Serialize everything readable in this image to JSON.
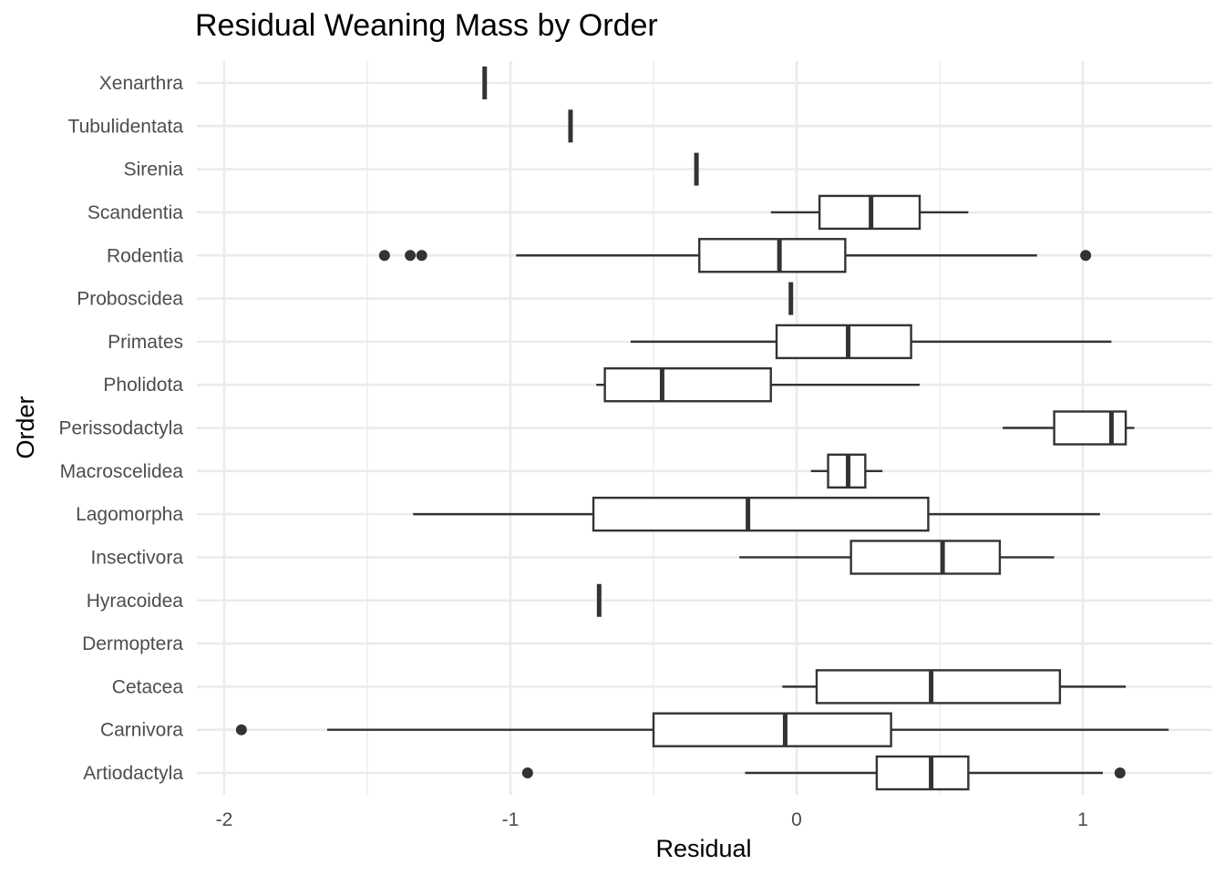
{
  "chart_data": {
    "type": "boxplot",
    "orientation": "horizontal",
    "title": "Residual Weaning Mass by Order",
    "xlabel": "Residual",
    "ylabel": "Order",
    "xlim": [
      -2.1,
      1.45
    ],
    "x_ticks": [
      -2,
      -1,
      0,
      1
    ],
    "x_tick_labels": [
      "-2",
      "-1",
      "0",
      "1"
    ],
    "grid": true,
    "categories": [
      "Artiodactyla",
      "Carnivora",
      "Cetacea",
      "Dermoptera",
      "Hyracoidea",
      "Insectivora",
      "Lagomorpha",
      "Macroscelidea",
      "Perissodactyla",
      "Pholidota",
      "Primates",
      "Proboscidea",
      "Rodentia",
      "Scandentia",
      "Sirenia",
      "Tubulidentata",
      "Xenarthra"
    ],
    "boxes": [
      {
        "category": "Artiodactyla",
        "min": -0.18,
        "q1": 0.28,
        "median": 0.47,
        "q3": 0.6,
        "max": 1.07,
        "outliers": [
          -0.94,
          1.13
        ]
      },
      {
        "category": "Carnivora",
        "min": -1.64,
        "q1": -0.5,
        "median": -0.04,
        "q3": 0.33,
        "max": 1.3,
        "outliers": [
          -1.94
        ]
      },
      {
        "category": "Cetacea",
        "min": -0.05,
        "q1": 0.07,
        "median": 0.47,
        "q3": 0.92,
        "max": 1.15,
        "outliers": []
      },
      {
        "category": "Dermoptera",
        "min": null,
        "q1": null,
        "median": null,
        "q3": null,
        "max": null,
        "outliers": []
      },
      {
        "category": "Hyracoidea",
        "min": -0.69,
        "q1": -0.69,
        "median": -0.69,
        "q3": -0.69,
        "max": -0.69,
        "outliers": []
      },
      {
        "category": "Insectivora",
        "min": -0.2,
        "q1": 0.19,
        "median": 0.51,
        "q3": 0.71,
        "max": 0.9,
        "outliers": []
      },
      {
        "category": "Lagomorpha",
        "min": -1.34,
        "q1": -0.71,
        "median": -0.17,
        "q3": 0.46,
        "max": 1.06,
        "outliers": []
      },
      {
        "category": "Macroscelidea",
        "min": 0.05,
        "q1": 0.11,
        "median": 0.18,
        "q3": 0.24,
        "max": 0.3,
        "outliers": []
      },
      {
        "category": "Perissodactyla",
        "min": 0.72,
        "q1": 0.9,
        "median": 1.1,
        "q3": 1.15,
        "max": 1.18,
        "outliers": []
      },
      {
        "category": "Pholidota",
        "min": -0.7,
        "q1": -0.67,
        "median": -0.47,
        "q3": -0.09,
        "max": 0.43,
        "outliers": []
      },
      {
        "category": "Primates",
        "min": -0.58,
        "q1": -0.07,
        "median": 0.18,
        "q3": 0.4,
        "max": 1.1,
        "outliers": []
      },
      {
        "category": "Proboscidea",
        "min": -0.02,
        "q1": -0.02,
        "median": -0.02,
        "q3": -0.02,
        "max": -0.02,
        "outliers": []
      },
      {
        "category": "Rodentia",
        "min": -0.98,
        "q1": -0.34,
        "median": -0.06,
        "q3": 0.17,
        "max": 0.84,
        "outliers": [
          -1.44,
          -1.35,
          -1.31,
          1.01
        ]
      },
      {
        "category": "Scandentia",
        "min": -0.09,
        "q1": 0.08,
        "median": 0.26,
        "q3": 0.43,
        "max": 0.6,
        "outliers": []
      },
      {
        "category": "Sirenia",
        "min": -0.35,
        "q1": -0.35,
        "median": -0.35,
        "q3": -0.35,
        "max": -0.35,
        "outliers": []
      },
      {
        "category": "Tubulidentata",
        "min": -0.79,
        "q1": -0.79,
        "median": -0.79,
        "q3": -0.79,
        "max": -0.79,
        "outliers": []
      },
      {
        "category": "Xenarthra",
        "min": -1.09,
        "q1": -1.09,
        "median": -1.09,
        "q3": -1.09,
        "max": -1.09,
        "outliers": []
      }
    ]
  }
}
